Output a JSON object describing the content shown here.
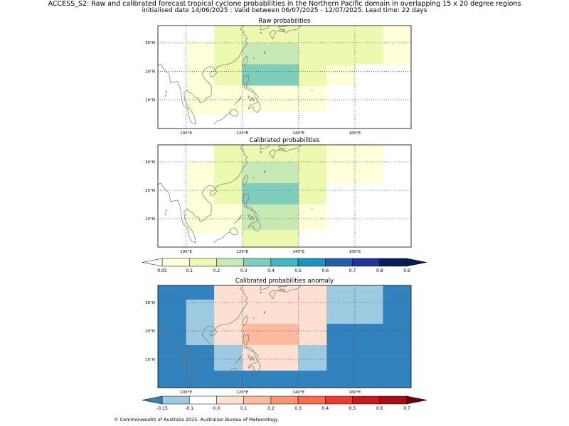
{
  "figure": {
    "title_line1": "ACCESS_S2: Raw and calibrated forecast tropical cyclone probabilities in the Northern Pacific domain in overlapping 15 x 20 degree regions",
    "title_line2": "initialised date 14/06/2025 :  Valid between 06/07/2025 - 12/07/2025. Lead time: 22 days",
    "footer": "© Commonwealth of Australia 2025, Australian Bureau of Meteorology"
  },
  "colors": {
    "prob": [
      "#ffffd9",
      "#edf8b1",
      "#c7e9b4",
      "#7fcdbb",
      "#41b6c4",
      "#1d91c0",
      "#225ea8",
      "#253494",
      "#081d58"
    ],
    "anom": [
      "#3182bd",
      "#9ecae1",
      "#ffffff",
      "#fee0d2",
      "#fcbba1",
      "#fc9272",
      "#fb6a4a",
      "#ef3b2c",
      "#cb181d",
      "#a50f15",
      "#67000d"
    ],
    "coast": "#777777"
  },
  "chart_data": [
    {
      "type": "heatmap",
      "title": "Raw probabilities",
      "lon_ticks": [
        "100°E",
        "120°E",
        "140°E",
        "160°E"
      ],
      "lat_ticks": [
        "10°N",
        "20°N",
        "30°N"
      ],
      "xlim": [
        90,
        180
      ],
      "ylim": [
        0,
        36
      ],
      "cells": [
        {
          "lon": [
            100,
            110
          ],
          "lat": [
            5,
            30
          ],
          "v": 0.07
        },
        {
          "lon": [
            110,
            120
          ],
          "lat": [
            5,
            36
          ],
          "v": 0.07
        },
        {
          "lon": [
            110,
            120
          ],
          "lat": [
            15,
            36
          ],
          "v": 0.12
        },
        {
          "lon": [
            120,
            130
          ],
          "lat": [
            6,
            36
          ],
          "v": 0.12
        },
        {
          "lon": [
            130,
            140
          ],
          "lat": [
            6,
            36
          ],
          "v": 0.12
        },
        {
          "lon": [
            140,
            150
          ],
          "lat": [
            6,
            36
          ],
          "v": 0.12
        },
        {
          "lon": [
            150,
            160
          ],
          "lat": [
            15,
            36
          ],
          "v": 0.12
        },
        {
          "lon": [
            160,
            180
          ],
          "lat": [
            22.5,
            36
          ],
          "v": 0.07
        },
        {
          "lon": [
            160,
            170
          ],
          "lat": [
            22.5,
            36
          ],
          "v": 0.12
        },
        {
          "lon": [
            140,
            150
          ],
          "lat": [
            15,
            36
          ],
          "v": 0.12
        },
        {
          "lon": [
            150,
            160
          ],
          "lat": [
            15,
            22
          ],
          "v": 0.07
        },
        {
          "lon": [
            120,
            130
          ],
          "lat": [
            6,
            15
          ],
          "v": 0.07
        },
        {
          "lon": [
            130,
            140
          ],
          "lat": [
            6,
            15
          ],
          "v": 0.07
        },
        {
          "lon": [
            140,
            150
          ],
          "lat": [
            6,
            15
          ],
          "v": 0.07
        },
        {
          "lon": [
            120,
            140
          ],
          "lat": [
            15,
            30
          ],
          "v": 0.22
        },
        {
          "lon": [
            120,
            140
          ],
          "lat": [
            15,
            22.5
          ],
          "v": 0.32
        }
      ]
    },
    {
      "type": "heatmap",
      "title": "Calibrated probabilities",
      "lon_ticks": [
        "100°E",
        "120°E",
        "140°E",
        "160°E"
      ],
      "lat_ticks": [
        "10°N",
        "20°N",
        "30°N"
      ],
      "xlim": [
        90,
        180
      ],
      "ylim": [
        0,
        36
      ],
      "cells": [
        {
          "lon": [
            100,
            110
          ],
          "lat": [
            5,
            30
          ],
          "v": 0.07
        },
        {
          "lon": [
            110,
            120
          ],
          "lat": [
            5,
            36
          ],
          "v": 0.07
        },
        {
          "lon": [
            110,
            120
          ],
          "lat": [
            15,
            36
          ],
          "v": 0.12
        },
        {
          "lon": [
            120,
            130
          ],
          "lat": [
            0,
            36
          ],
          "v": 0.12
        },
        {
          "lon": [
            130,
            140
          ],
          "lat": [
            0,
            36
          ],
          "v": 0.12
        },
        {
          "lon": [
            140,
            150
          ],
          "lat": [
            6,
            36
          ],
          "v": 0.12
        },
        {
          "lon": [
            150,
            160
          ],
          "lat": [
            22.5,
            36
          ],
          "v": 0.07
        },
        {
          "lon": [
            160,
            170
          ],
          "lat": [
            22.5,
            36
          ],
          "v": 0.07
        },
        {
          "lon": [
            140,
            150
          ],
          "lat": [
            6,
            15
          ],
          "v": 0.07
        },
        {
          "lon": [
            120,
            140
          ],
          "lat": [
            0,
            15
          ],
          "v": 0.12
        },
        {
          "lon": [
            120,
            140
          ],
          "lat": [
            6,
            15
          ],
          "v": 0.22
        },
        {
          "lon": [
            120,
            140
          ],
          "lat": [
            15,
            30
          ],
          "v": 0.22
        },
        {
          "lon": [
            120,
            140
          ],
          "lat": [
            15,
            22.5
          ],
          "v": 0.32
        }
      ]
    },
    {
      "type": "heatmap",
      "title": "Calibrated probabilities anomaly",
      "lon_ticks": [
        "100°E",
        "120°E",
        "140°E",
        "160°E"
      ],
      "lat_ticks": [
        "10°N",
        "20°N",
        "30°N"
      ],
      "xlim": [
        90,
        180
      ],
      "ylim": [
        0,
        36
      ],
      "cells": [
        {
          "lon": [
            90,
            180
          ],
          "lat": [
            0,
            36
          ],
          "v": -0.17
        },
        {
          "lon": [
            100,
            110
          ],
          "lat": [
            15,
            31
          ],
          "v": -0.12
        },
        {
          "lon": [
            110,
            120
          ],
          "lat": [
            15,
            36
          ],
          "v": 0.0
        },
        {
          "lon": [
            110,
            120
          ],
          "lat": [
            6,
            15
          ],
          "v": -0.12
        },
        {
          "lon": [
            120,
            140
          ],
          "lat": [
            6,
            36
          ],
          "v": 0.0
        },
        {
          "lon": [
            130,
            140
          ],
          "lat": [
            6,
            31
          ],
          "v": 0.05
        },
        {
          "lon": [
            120,
            130
          ],
          "lat": [
            6,
            31
          ],
          "v": 0.05
        },
        {
          "lon": [
            120,
            140
          ],
          "lat": [
            15,
            22.5
          ],
          "v": 0.12
        },
        {
          "lon": [
            140,
            150
          ],
          "lat": [
            6,
            15
          ],
          "v": -0.12
        },
        {
          "lon": [
            140,
            150
          ],
          "lat": [
            15,
            36
          ],
          "v": 0.0
        },
        {
          "lon": [
            150,
            160
          ],
          "lat": [
            22.5,
            36
          ],
          "v": -0.12
        },
        {
          "lon": [
            160,
            170
          ],
          "lat": [
            22.5,
            36
          ],
          "v": -0.12
        }
      ]
    }
  ],
  "colorbars": [
    {
      "labels": [
        "0.05",
        "0.1",
        "0.2",
        "0.3",
        "0.4",
        "0.5",
        "0.6",
        "0.7",
        "0.8",
        "0.9"
      ],
      "palette": "prob"
    },
    {
      "labels": [
        "-0.15",
        "-0.1",
        "0.0",
        "0.1",
        "0.2",
        "0.3",
        "0.4",
        "0.5",
        "0.6",
        "0.7"
      ],
      "palette": "anom"
    }
  ]
}
